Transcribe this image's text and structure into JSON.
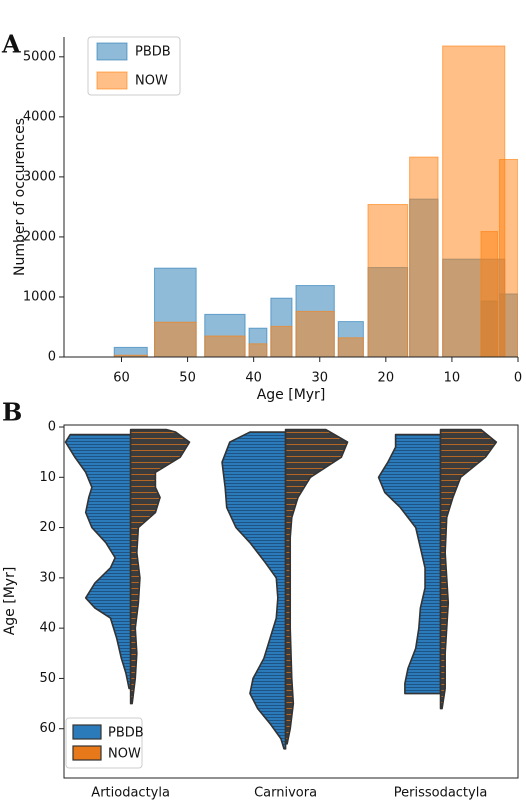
{
  "chart_data": [
    {
      "type": "bar",
      "panel_label": "A",
      "xlabel": "Age [Myr]",
      "ylabel": "Number of occurences",
      "intervals": [
        [
          61.1,
          56.1
        ],
        [
          55,
          48.7
        ],
        [
          47.4,
          41.3
        ],
        [
          40.7,
          38
        ],
        [
          37.4,
          34.2
        ],
        [
          33.6,
          27.8
        ],
        [
          27.2,
          23.4
        ],
        [
          22.7,
          16.7
        ],
        [
          16.4,
          12.1
        ],
        [
          11.4,
          2
        ],
        [
          5.6,
          3.1
        ],
        [
          2.8,
          0
        ]
      ],
      "series": [
        {
          "name": "PBDB",
          "color": "#1f77b4",
          "values": [
            160,
            1480,
            710,
            480,
            980,
            1190,
            590,
            1490,
            2630,
            1630,
            930,
            1050
          ]
        },
        {
          "name": "NOW",
          "color": "#ff7f0e",
          "values": [
            30,
            580,
            350,
            220,
            510,
            760,
            320,
            2540,
            3330,
            5180,
            2090,
            3290
          ]
        }
      ],
      "xlim": [
        68.7,
        0
      ],
      "xticks": [
        60,
        50,
        40,
        30,
        20,
        10,
        0
      ],
      "ylim": [
        0,
        5330
      ],
      "yticks": [
        0,
        1000,
        2000,
        3000,
        4000,
        5000
      ],
      "legend": "upper left"
    },
    {
      "type": "violin",
      "panel_label": "B",
      "ylabel": "Age [Myr]",
      "categories": [
        "Artiodactyla",
        "Carnivora",
        "Perissodactyla"
      ],
      "series": [
        {
          "name": "PBDB",
          "color": "#2b7bba",
          "side": "left",
          "profiles": [
            {
              "y": [
                1.5,
                3,
                6,
                9,
                12,
                14,
                17,
                20,
                23,
                26,
                28,
                31,
                34,
                36,
                38,
                42,
                46,
                49,
                52
              ],
              "width": [
                0.39,
                0.42,
                0.36,
                0.29,
                0.25,
                0.27,
                0.29,
                0.25,
                0.16,
                0.1,
                0.13,
                0.23,
                0.29,
                0.23,
                0.13,
                0.09,
                0.06,
                0.03,
                0.01
              ]
            },
            {
              "y": [
                1,
                3,
                7,
                12,
                16,
                20,
                23,
                27,
                30,
                34,
                38,
                42,
                46,
                50,
                53,
                56,
                59,
                62,
                64
              ],
              "width": [
                0.23,
                0.36,
                0.41,
                0.39,
                0.38,
                0.32,
                0.23,
                0.13,
                0.06,
                0.05,
                0.06,
                0.1,
                0.14,
                0.21,
                0.23,
                0.18,
                0.1,
                0.03,
                0.01
              ]
            },
            {
              "y": [
                1.5,
                4,
                7,
                10,
                13,
                16,
                20,
                24,
                28,
                32,
                36,
                40,
                44,
                48,
                51,
                53
              ],
              "width": [
                0.29,
                0.29,
                0.34,
                0.4,
                0.36,
                0.26,
                0.16,
                0.13,
                0.1,
                0.1,
                0.13,
                0.14,
                0.16,
                0.21,
                0.23,
                0.23
              ]
            }
          ]
        },
        {
          "name": "NOW",
          "color": "#e8791a",
          "fill": "#3c3c3c",
          "side": "right",
          "profiles": [
            {
              "y": [
                0.5,
                1,
                3,
                6,
                9,
                12,
                14,
                17,
                20,
                25,
                30,
                35,
                40,
                45,
                50,
                55
              ],
              "width": [
                0.23,
                0.29,
                0.38,
                0.32,
                0.16,
                0.16,
                0.19,
                0.16,
                0.05,
                0.04,
                0.06,
                0.05,
                0.03,
                0.04,
                0.03,
                0.01
              ]
            },
            {
              "y": [
                0.5,
                3,
                6,
                10,
                14,
                18,
                22,
                30,
                40,
                50,
                55,
                60,
                63
              ],
              "width": [
                0.26,
                0.4,
                0.36,
                0.16,
                0.08,
                0.04,
                0.03,
                0.03,
                0.03,
                0.04,
                0.05,
                0.03,
                0.01
              ]
            },
            {
              "y": [
                0.5,
                3,
                6,
                10,
                14,
                18,
                25,
                35,
                45,
                52,
                56
              ],
              "width": [
                0.26,
                0.36,
                0.29,
                0.13,
                0.08,
                0.04,
                0.03,
                0.05,
                0.03,
                0.03,
                0.01
              ]
            }
          ]
        }
      ],
      "xlim": [
        -0.43,
        2.5
      ],
      "ylim": [
        -0.4,
        69.8
      ],
      "yticks": [
        0,
        10,
        20,
        30,
        40,
        50,
        60
      ],
      "legend": "lower left"
    }
  ]
}
